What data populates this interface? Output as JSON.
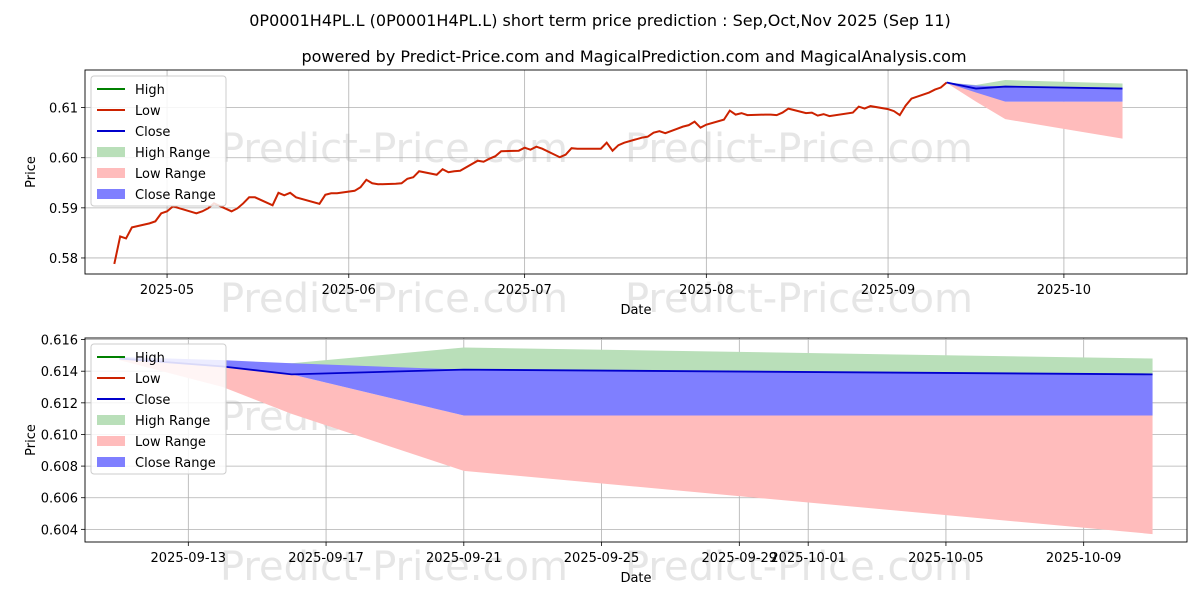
{
  "title": "0P0001H4PL.L (0P0001H4PL.L) short term price prediction : Sep,Oct,Nov 2025 (Sep 11)",
  "subtitle": "powered by Predict-Price.com and MagicalPrediction.com and MagicalAnalysis.com",
  "watermark": "Predict-Price.com",
  "colors": {
    "high": "#008000",
    "low": "#cc2200",
    "close": "#0000cc",
    "high_range": "#b9dfb9",
    "low_range": "#ffbcbc",
    "close_range": "#7f7fff"
  },
  "chart_data": [
    {
      "type": "line",
      "xlabel": "Date",
      "ylabel": "Price",
      "xlim": [
        "2025-04-17",
        "2025-10-22"
      ],
      "ylim": [
        0.5768,
        0.6175
      ],
      "grid": true,
      "legend_position": "top-left",
      "legend": [
        "High",
        "Low",
        "Close",
        "High Range",
        "Low Range",
        "Close Range"
      ],
      "x_ticks": [
        "2025-05-01",
        "2025-06-01",
        "2025-07-01",
        "2025-08-01",
        "2025-09-01",
        "2025-10-01"
      ],
      "x_tick_labels": [
        "2025-05",
        "2025-06",
        "2025-07",
        "2025-08",
        "2025-09",
        "2025-10"
      ],
      "y_ticks": [
        0.58,
        0.59,
        0.6,
        0.61
      ],
      "y_tick_labels": [
        "0.58",
        "0.59",
        "0.60",
        "0.61"
      ],
      "history": {
        "x": [
          "2025-04-22",
          "2025-04-23",
          "2025-04-24",
          "2025-04-25",
          "2025-04-28",
          "2025-04-29",
          "2025-04-30",
          "2025-05-01",
          "2025-05-02",
          "2025-05-06",
          "2025-05-07",
          "2025-05-08",
          "2025-05-09",
          "2025-05-12",
          "2025-05-13",
          "2025-05-14",
          "2025-05-15",
          "2025-05-16",
          "2025-05-19",
          "2025-05-20",
          "2025-05-21",
          "2025-05-22",
          "2025-05-23",
          "2025-05-27",
          "2025-05-28",
          "2025-05-29",
          "2025-05-30",
          "2025-06-02",
          "2025-06-03",
          "2025-06-04",
          "2025-06-05",
          "2025-06-06",
          "2025-06-09",
          "2025-06-10",
          "2025-06-11",
          "2025-06-12",
          "2025-06-13",
          "2025-06-16",
          "2025-06-17",
          "2025-06-18",
          "2025-06-19",
          "2025-06-20",
          "2025-06-23",
          "2025-06-24",
          "2025-06-25",
          "2025-06-26",
          "2025-06-27",
          "2025-06-30",
          "2025-07-01",
          "2025-07-02",
          "2025-07-03",
          "2025-07-04",
          "2025-07-07",
          "2025-07-08",
          "2025-07-09",
          "2025-07-10",
          "2025-07-11",
          "2025-07-14",
          "2025-07-15",
          "2025-07-16",
          "2025-07-17",
          "2025-07-18",
          "2025-07-21",
          "2025-07-22",
          "2025-07-23",
          "2025-07-24",
          "2025-07-25",
          "2025-07-28",
          "2025-07-29",
          "2025-07-30",
          "2025-07-31",
          "2025-08-01",
          "2025-08-04",
          "2025-08-05",
          "2025-08-06",
          "2025-08-07",
          "2025-08-08",
          "2025-08-11",
          "2025-08-12",
          "2025-08-13",
          "2025-08-14",
          "2025-08-15",
          "2025-08-18",
          "2025-08-19",
          "2025-08-20",
          "2025-08-21",
          "2025-08-22",
          "2025-08-26",
          "2025-08-27",
          "2025-08-28",
          "2025-08-29",
          "2025-09-01",
          "2025-09-02",
          "2025-09-03",
          "2025-09-04",
          "2025-09-05",
          "2025-09-08",
          "2025-09-09",
          "2025-09-10",
          "2025-09-11"
        ],
        "low": [
          0.5788,
          0.5843,
          0.5839,
          0.5861,
          0.5869,
          0.5873,
          0.5889,
          0.5893,
          0.5903,
          0.5889,
          0.5893,
          0.5899,
          0.5909,
          0.5893,
          0.5899,
          0.5909,
          0.5921,
          0.5921,
          0.5905,
          0.593,
          0.5925,
          0.593,
          0.5921,
          0.5908,
          0.5926,
          0.5929,
          0.5929,
          0.5934,
          0.5941,
          0.5956,
          0.5949,
          0.5947,
          0.5948,
          0.5949,
          0.5958,
          0.5961,
          0.5973,
          0.5966,
          0.5977,
          0.5971,
          0.5973,
          0.5974,
          0.5994,
          0.5992,
          0.5998,
          0.6003,
          0.6013,
          0.6014,
          0.602,
          0.6016,
          0.6022,
          0.6018,
          0.6001,
          0.6006,
          0.6019,
          0.6018,
          0.6018,
          0.6018,
          0.603,
          0.6014,
          0.6025,
          0.603,
          0.604,
          0.6042,
          0.605,
          0.6053,
          0.6049,
          0.6062,
          0.6065,
          0.6072,
          0.606,
          0.6066,
          0.6076,
          0.6094,
          0.6086,
          0.6089,
          0.6085,
          0.6086,
          0.6086,
          0.6085,
          0.609,
          0.6098,
          0.6089,
          0.609,
          0.6084,
          0.6087,
          0.6083,
          0.609,
          0.6102,
          0.6098,
          0.6103,
          0.6097,
          0.6093,
          0.6085,
          0.6104,
          0.6118,
          0.613,
          0.6136,
          0.614,
          0.615
        ]
      },
      "forecast": {
        "x": [
          "2025-09-11",
          "2025-09-16",
          "2025-09-21",
          "2025-10-11"
        ],
        "close": [
          0.615,
          0.6138,
          0.6142,
          0.6138
        ],
        "high_range": [
          [
            0.6149,
            0.615
          ],
          [
            0.6138,
            0.6145
          ],
          [
            0.6142,
            0.6155
          ],
          [
            0.6138,
            0.6148
          ]
        ],
        "low_range": [
          [
            0.6149,
            0.615
          ],
          [
            0.6112,
            0.6138
          ],
          [
            0.6077,
            0.6112
          ],
          [
            0.6038,
            0.6112
          ]
        ],
        "close_range": [
          [
            0.6149,
            0.615
          ],
          [
            0.613,
            0.6144
          ],
          [
            0.6112,
            0.6142
          ],
          [
            0.6112,
            0.6138
          ]
        ]
      }
    },
    {
      "type": "line",
      "xlabel": "Date",
      "ylabel": "Price",
      "xlim": [
        "2025-09-10",
        "2025-10-12"
      ],
      "ylim": [
        0.6032,
        0.6161
      ],
      "grid": true,
      "legend_position": "top-left",
      "legend": [
        "High",
        "Low",
        "Close",
        "High Range",
        "Low Range",
        "Close Range"
      ],
      "x_ticks": [
        "2025-09-13",
        "2025-09-17",
        "2025-09-21",
        "2025-09-25",
        "2025-09-29",
        "2025-10-01",
        "2025-10-05",
        "2025-10-09"
      ],
      "x_tick_labels": [
        "2025-09-13",
        "2025-09-17",
        "2025-09-21",
        "2025-09-25",
        "2025-09-29",
        "2025-10-01",
        "2025-10-05",
        "2025-10-09"
      ],
      "y_ticks": [
        0.604,
        0.606,
        0.608,
        0.61,
        0.612,
        0.614,
        0.616
      ],
      "y_tick_labels": [
        "0.604",
        "0.606",
        "0.608",
        "0.610",
        "0.612",
        "0.614",
        "0.616"
      ],
      "forecast": {
        "x": [
          "2025-09-11",
          "2025-09-14",
          "2025-09-16",
          "2025-09-21",
          "2025-10-11"
        ],
        "close": [
          0.6148,
          0.6143,
          0.6138,
          0.6141,
          0.6138
        ],
        "high_range": [
          [
            0.6148,
            0.6149
          ],
          [
            0.6143,
            0.6145
          ],
          [
            0.6138,
            0.6145
          ],
          [
            0.6141,
            0.6155
          ],
          [
            0.6138,
            0.6148
          ]
        ],
        "low_range": [
          [
            0.6147,
            0.6148
          ],
          [
            0.613,
            0.6143
          ],
          [
            0.6113,
            0.6138
          ],
          [
            0.6077,
            0.6112
          ],
          [
            0.6037,
            0.6112
          ]
        ],
        "close_range": [
          [
            0.6148,
            0.6149
          ],
          [
            0.6143,
            0.6147
          ],
          [
            0.6138,
            0.6145
          ],
          [
            0.6112,
            0.6141
          ],
          [
            0.6112,
            0.6138
          ]
        ]
      }
    }
  ]
}
